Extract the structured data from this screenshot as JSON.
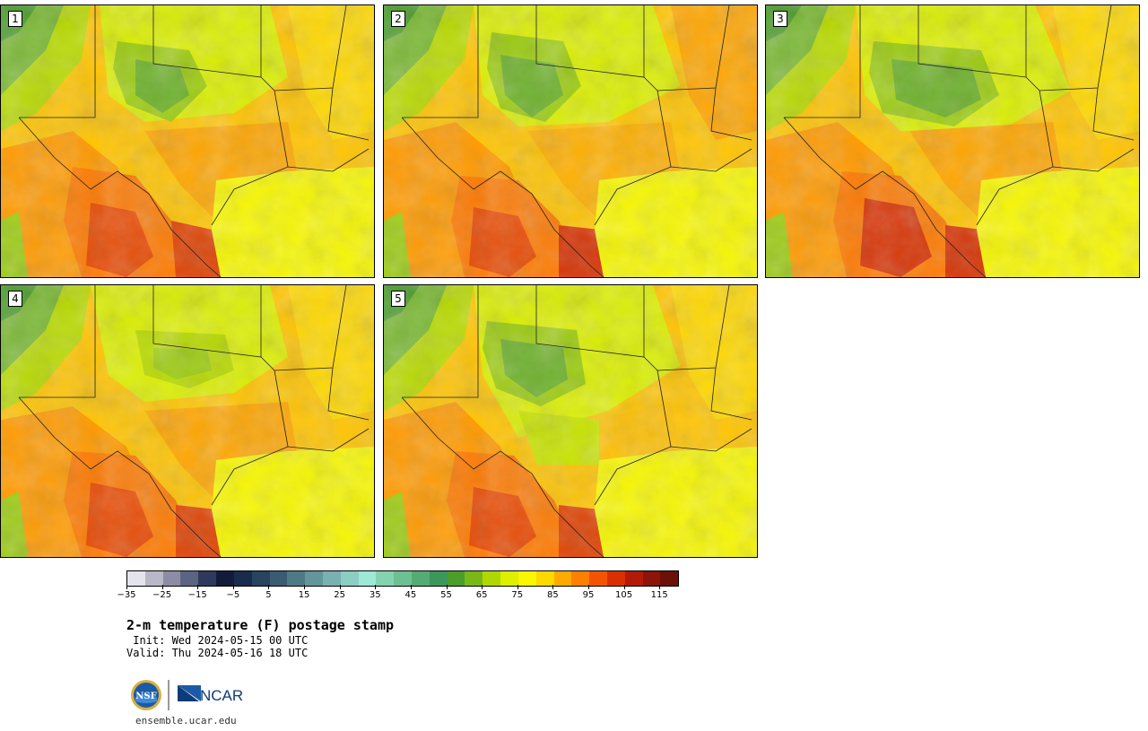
{
  "panels": [
    {
      "label": "1"
    },
    {
      "label": "2"
    },
    {
      "label": "3"
    },
    {
      "label": "4"
    },
    {
      "label": "5"
    }
  ],
  "colorbar": {
    "colors": [
      "#e4e4ec",
      "#b8b8c8",
      "#8c8ca4",
      "#5c6484",
      "#2e3a5c",
      "#121c3a",
      "#1a2c4c",
      "#28445e",
      "#3a5c72",
      "#4e7a86",
      "#62969a",
      "#78b2b0",
      "#8ccec4",
      "#9ee8d6",
      "#84d2b0",
      "#6cc092",
      "#54ac74",
      "#3c985a",
      "#4a9e2a",
      "#7ab818",
      "#b0d800",
      "#dcf000",
      "#f8f800",
      "#ffd800",
      "#ffaa00",
      "#ff8000",
      "#f45400",
      "#d83000",
      "#b41a08",
      "#8c1408",
      "#6c1008"
    ],
    "tick_labels": [
      "−35",
      "−25",
      "−15",
      "−5",
      "5",
      "15",
      "25",
      "35",
      "45",
      "55",
      "65",
      "75",
      "85",
      "95",
      "105",
      "115"
    ]
  },
  "title": "2-m temperature (F) postage stamp",
  "init": " Init: Wed 2024-05-15 00 UTC",
  "valid": "Valid: Thu 2024-05-16 18 UTC",
  "logos": {
    "nsf": "NSF",
    "ncar": "NCAR"
  },
  "url": "ensemble.ucar.edu"
}
